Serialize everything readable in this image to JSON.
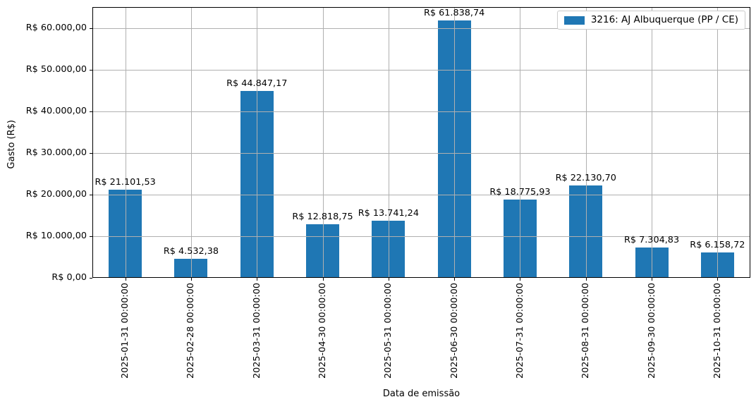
{
  "chart_data": {
    "type": "bar",
    "title": "",
    "xlabel": "Data de emissão",
    "ylabel": "Gasto (R$)",
    "categories": [
      "2025-01-31 00:00:00",
      "2025-02-28 00:00:00",
      "2025-03-31 00:00:00",
      "2025-04-30 00:00:00",
      "2025-05-31 00:00:00",
      "2025-06-30 00:00:00",
      "2025-07-31 00:00:00",
      "2025-08-31 00:00:00",
      "2025-09-30 00:00:00",
      "2025-10-31 00:00:00"
    ],
    "series": [
      {
        "name": "3216: AJ Albuquerque (PP / CE)",
        "color": "#1f77b4",
        "values": [
          21101.53,
          4532.38,
          44847.17,
          12818.75,
          13741.24,
          61838.74,
          18775.93,
          22130.7,
          7304.83,
          6158.72
        ],
        "value_labels": [
          "R$ 21.101,53",
          "R$ 4.532,38",
          "R$ 44.847,17",
          "R$ 12.818,75",
          "R$ 13.741,24",
          "R$ 61.838,74",
          "R$ 18.775,93",
          "R$ 22.130,70",
          "R$ 7.304,83",
          "R$ 6.158,72"
        ]
      }
    ],
    "ylim": [
      0,
      65000
    ],
    "yticks": [
      {
        "value": 0,
        "label": "R$ 0,00"
      },
      {
        "value": 10000,
        "label": "R$ 10.000,00"
      },
      {
        "value": 20000,
        "label": "R$ 20.000,00"
      },
      {
        "value": 30000,
        "label": "R$ 30.000,00"
      },
      {
        "value": 40000,
        "label": "R$ 40.000,00"
      },
      {
        "value": 50000,
        "label": "R$ 50.000,00"
      },
      {
        "value": 60000,
        "label": "R$ 60.000,00"
      }
    ],
    "grid": true,
    "legend_position": "upper right"
  },
  "style": {
    "bar_color": "#1f77b4",
    "grid_color": "#b0b0b0",
    "spine_color": "#000000",
    "background": "#ffffff",
    "text_color": "#000000",
    "legend_border": "#cccccc"
  }
}
